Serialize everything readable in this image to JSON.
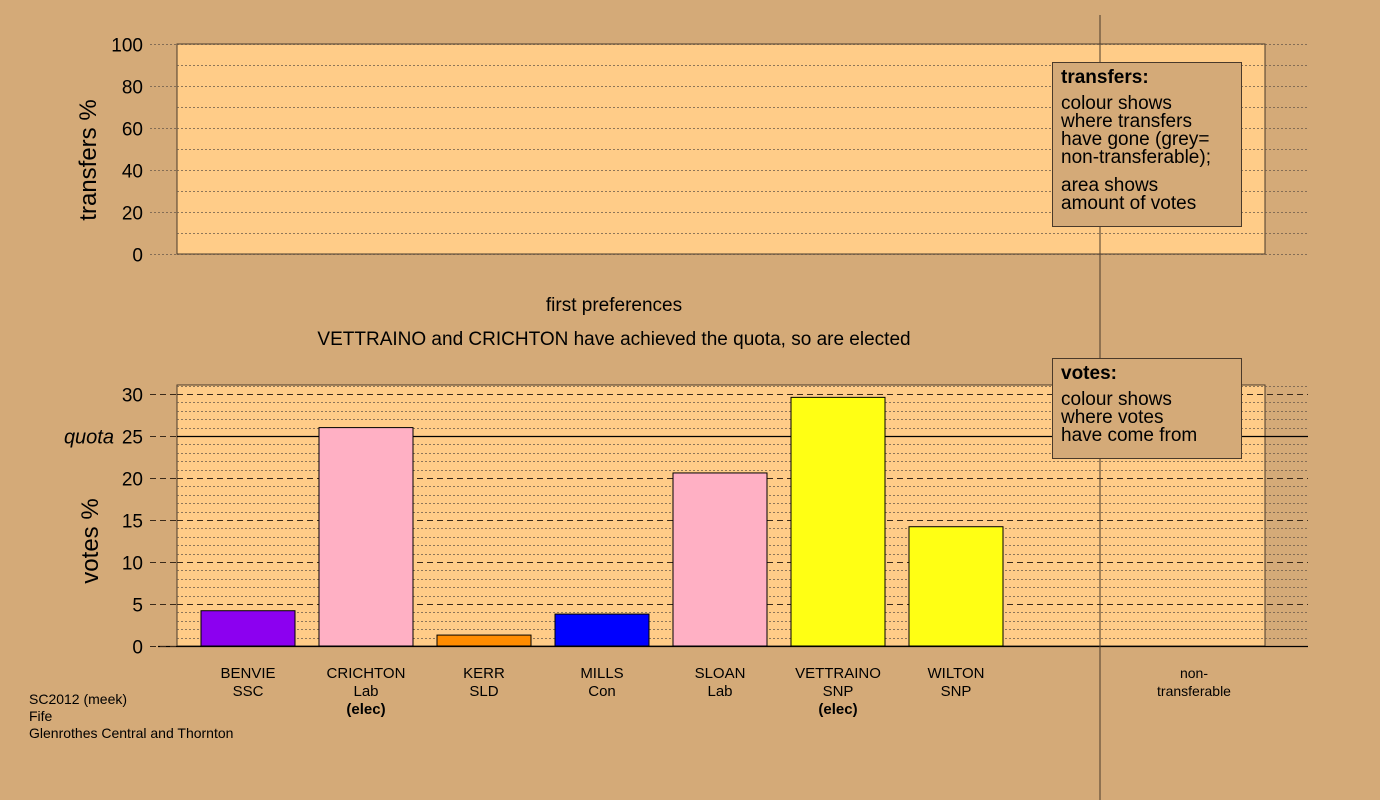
{
  "chart_data": [
    {
      "type": "bar",
      "title": "",
      "xlabel": "",
      "ylabel": "transfers %",
      "ylim": [
        0,
        100
      ],
      "yticks": [
        0,
        20,
        40,
        60,
        80,
        100
      ],
      "series": [],
      "legend": {
        "title": "transfers:",
        "paragraphs": [
          [
            "colour shows",
            "where transfers",
            "have gone (grey=",
            "non-transferable);"
          ],
          [
            "area shows",
            "amount of votes"
          ]
        ]
      }
    },
    {
      "type": "bar",
      "title": "first preferences",
      "subtitle": "VETTRAINO and CRICHTON have achieved the quota, so are elected",
      "xlabel": "",
      "ylabel": "votes %",
      "ylim": [
        0,
        31
      ],
      "yticks": [
        0,
        5,
        10,
        15,
        20,
        25,
        30
      ],
      "quota": {
        "label": "quota",
        "value": 25
      },
      "categories": [
        {
          "name": "BENVIE",
          "party": "SSC",
          "elected": "",
          "value": 4.2,
          "color": "#8c00f0"
        },
        {
          "name": "CRICHTON",
          "party": "Lab",
          "elected": "(elec)",
          "value": 26.0,
          "color": "#ffb0c4"
        },
        {
          "name": "KERR",
          "party": "SLD",
          "elected": "",
          "value": 1.3,
          "color": "#ff8c00"
        },
        {
          "name": "MILLS",
          "party": "Con",
          "elected": "",
          "value": 3.8,
          "color": "#0000ff"
        },
        {
          "name": "SLOAN",
          "party": "Lab",
          "elected": "",
          "value": 20.6,
          "color": "#ffb0c4"
        },
        {
          "name": "VETTRAINO",
          "party": "SNP",
          "elected": "(elec)",
          "value": 29.6,
          "color": "#ffff14"
        },
        {
          "name": "WILTON",
          "party": "SNP",
          "elected": "",
          "value": 14.2,
          "color": "#ffff14"
        }
      ],
      "non_transferable": {
        "label_line1": "non-",
        "label_line2": "transferable",
        "value": 0
      },
      "legend": {
        "title": "votes:",
        "paragraphs": [
          [
            "colour shows",
            "where votes",
            "have come from"
          ]
        ]
      }
    }
  ],
  "footer": {
    "line1": "SC2012 (meek)",
    "line2": "Fife",
    "line3": "Glenrothes Central and Thornton"
  }
}
